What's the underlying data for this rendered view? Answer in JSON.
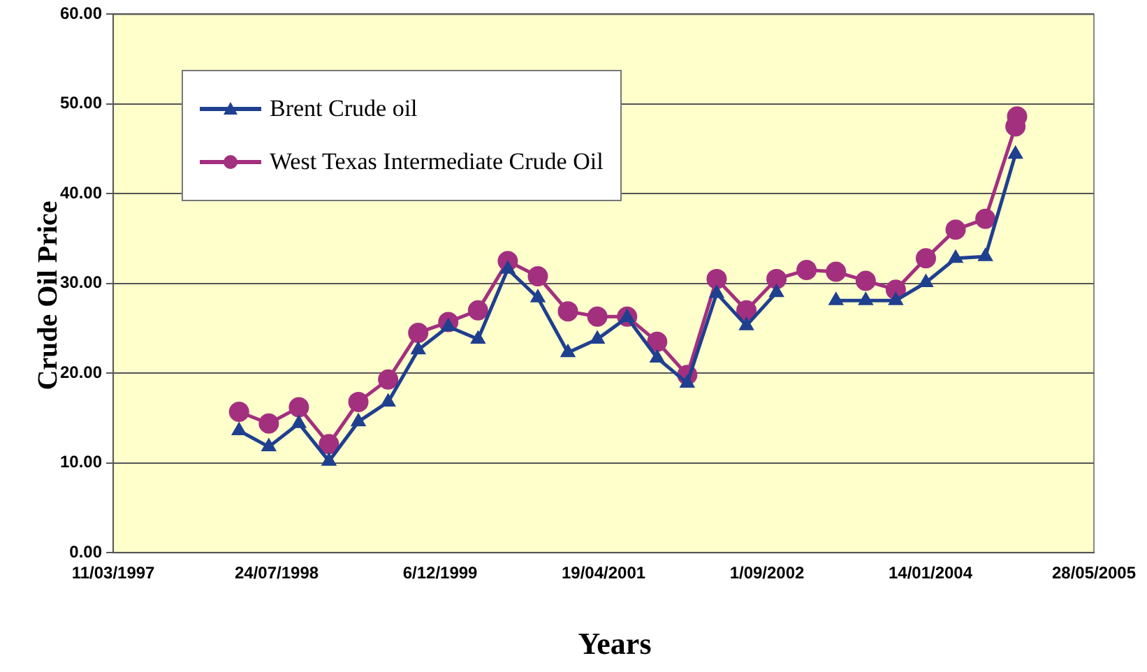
{
  "chart_data": {
    "type": "line",
    "xlabel": "Years",
    "ylabel": "Crude Oil Price",
    "x": [
      "1998-03-31",
      "1998-06-30",
      "1998-09-30",
      "1998-12-31",
      "1999-03-31",
      "1999-06-30",
      "1999-09-30",
      "1999-12-31",
      "2000-03-31",
      "2000-06-30",
      "2000-09-30",
      "2000-12-31",
      "2001-03-31",
      "2001-06-30",
      "2001-09-30",
      "2001-12-31",
      "2002-03-31",
      "2002-06-30",
      "2002-09-30",
      "2002-12-31",
      "2003-03-31",
      "2003-06-30",
      "2003-09-30",
      "2003-12-31",
      "2004-03-31",
      "2004-06-30",
      "2004-09-30",
      "2004-10-05"
    ],
    "series": [
      {
        "name": "Brent Crude oil",
        "color": "#1f3f8f",
        "marker": "triangle",
        "values": [
          13.6,
          11.8,
          14.4,
          10.2,
          14.6,
          16.8,
          22.6,
          25.2,
          23.8,
          31.6,
          28.4,
          22.3,
          23.8,
          26.2,
          21.7,
          18.9,
          28.9,
          25.3,
          29.0,
          null,
          28.1,
          28.1,
          28.1,
          30.1,
          32.8,
          33.0,
          44.4,
          null
        ]
      },
      {
        "name": "West Texas Intermediate Crude Oil",
        "color": "#a3307f",
        "marker": "circle",
        "values": [
          15.7,
          14.4,
          16.2,
          12.1,
          16.8,
          19.3,
          24.5,
          25.7,
          27.0,
          32.5,
          30.8,
          26.9,
          26.3,
          26.3,
          23.5,
          19.8,
          30.5,
          27.0,
          30.5,
          31.5,
          31.3,
          30.3,
          29.3,
          32.8,
          36.0,
          37.2,
          47.5,
          48.6
        ]
      }
    ],
    "xlim": [
      "1997-03-11",
      "2005-05-28"
    ],
    "xticks": [
      {
        "value": "1997-03-11",
        "label": "11/03/1997"
      },
      {
        "value": "1998-07-24",
        "label": "24/07/1998"
      },
      {
        "value": "1999-12-06",
        "label": "6/12/1999"
      },
      {
        "value": "2001-04-19",
        "label": "19/04/2001"
      },
      {
        "value": "2002-09-01",
        "label": "1/09/2002"
      },
      {
        "value": "2004-01-14",
        "label": "14/01/2004"
      },
      {
        "value": "2005-05-28",
        "label": "28/05/2005"
      }
    ],
    "ylim": [
      0,
      60
    ],
    "yticks": [
      {
        "value": 0,
        "label": "0.00"
      },
      {
        "value": 10,
        "label": "10.00"
      },
      {
        "value": 20,
        "label": "20.00"
      },
      {
        "value": 30,
        "label": "30.00"
      },
      {
        "value": 40,
        "label": "40.00"
      },
      {
        "value": 50,
        "label": "50.00"
      },
      {
        "value": 60,
        "label": "60.00"
      }
    ],
    "grid": "y",
    "legend": "top left"
  }
}
